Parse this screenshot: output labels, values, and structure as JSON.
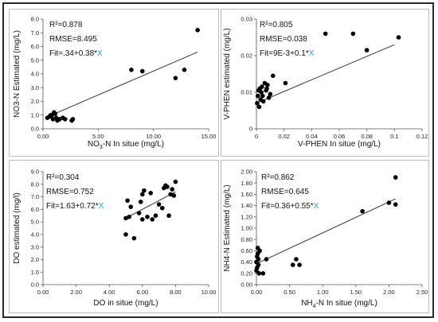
{
  "chart_data": [
    {
      "type": "scatter",
      "xlabel": "NO3-N In situe (mg/L)",
      "xlabel_parts": {
        "a": "NO",
        "sub": "3",
        "b": "-N In situe (mg/L)"
      },
      "ylabel": "NO3-N Estimated (mg/L)",
      "xlim": [
        0,
        15
      ],
      "ylim": [
        0,
        8
      ],
      "xticks": [
        "0.00",
        "5.00",
        "10.00",
        "15.00"
      ],
      "yticks": [
        "0.0",
        "1.0",
        "2.0",
        "3.0",
        "4.0",
        "5.0",
        "6.0",
        "7.0",
        "8.0"
      ],
      "stats": {
        "r2": "R²=0.878",
        "rmse": "RMSE=8.495",
        "fit": "Fit=.34+0.38*",
        "fit_x": "X"
      },
      "fit_line": {
        "x": [
          0.2,
          14.0
        ],
        "y": [
          0.8,
          5.6
        ]
      },
      "x": [
        0.4,
        0.6,
        0.7,
        0.8,
        0.9,
        1.0,
        1.1,
        1.2,
        1.3,
        1.5,
        1.8,
        2.0,
        2.6,
        2.7,
        8.0,
        9.0,
        12.0,
        12.8,
        14.0
      ],
      "y": [
        0.8,
        0.9,
        1.0,
        1.0,
        0.7,
        1.2,
        1.1,
        0.8,
        0.6,
        0.7,
        0.8,
        0.7,
        0.6,
        0.7,
        4.3,
        4.2,
        3.7,
        4.3,
        7.2
      ]
    },
    {
      "type": "scatter",
      "xlabel": "V-PHEN In situe (mg/L)",
      "ylabel": "V-PHEN estimated (mg/L)",
      "xlim": [
        0,
        0.12
      ],
      "ylim": [
        0,
        0.03
      ],
      "xticks": [
        "0",
        "0.02",
        "0.04",
        "0.06",
        "0.08",
        "0.1",
        "0.12"
      ],
      "yticks": [
        "0",
        "0.01",
        "0.02",
        "0.03"
      ],
      "stats": {
        "r2": "R²=0.805",
        "rmse": "RMSE=0.038",
        "fit": "Fit=9E-3+0.1*",
        "fit_x": "X"
      },
      "fit_line": {
        "x": [
          0,
          0.1
        ],
        "y": [
          0.007,
          0.023
        ]
      },
      "x": [
        0.0005,
        0.001,
        0.0015,
        0.002,
        0.0025,
        0.003,
        0.0035,
        0.004,
        0.0045,
        0.005,
        0.006,
        0.007,
        0.0075,
        0.008,
        0.009,
        0.01,
        0.012,
        0.021,
        0.05,
        0.07,
        0.08,
        0.103
      ],
      "y": [
        0.007,
        0.009,
        0.0105,
        0.006,
        0.011,
        0.008,
        0.01,
        0.0115,
        0.009,
        0.0075,
        0.0125,
        0.0105,
        0.011,
        0.012,
        0.0085,
        0.0095,
        0.0145,
        0.0125,
        0.026,
        0.026,
        0.0215,
        0.025
      ]
    },
    {
      "type": "scatter",
      "xlabel": "DO in situe (mg/L)",
      "ylabel": "DO estimated (mg/l)",
      "xlim": [
        0,
        10
      ],
      "ylim": [
        0,
        9
      ],
      "xticks": [
        "0.00",
        "2.00",
        "4.00",
        "6.00",
        "8.00",
        "10.00"
      ],
      "yticks": [
        "0.0",
        "1.0",
        "2.0",
        "3.0",
        "4.0",
        "5.0",
        "6.0",
        "7.0",
        "8.0",
        "9.0"
      ],
      "stats": {
        "r2": "R²=0.304",
        "rmse": "RMSE=0.752",
        "fit": "Fit=1.63+0.72*",
        "fit_x": "X"
      },
      "fit_line": {
        "x": [
          5.0,
          8.0
        ],
        "y": [
          5.3,
          7.4
        ]
      },
      "x": [
        5.0,
        5.0,
        5.1,
        5.2,
        5.3,
        5.5,
        5.8,
        5.9,
        6.0,
        6.0,
        6.1,
        6.3,
        6.5,
        6.6,
        6.8,
        7.0,
        7.2,
        7.3,
        7.4,
        7.5,
        7.6,
        7.7,
        7.8,
        7.9,
        8.0
      ],
      "y": [
        4.0,
        5.3,
        6.7,
        5.4,
        6.2,
        3.7,
        5.7,
        6.6,
        7.2,
        5.2,
        7.5,
        5.4,
        7.3,
        5.2,
        5.5,
        6.4,
        6.1,
        7.7,
        7.9,
        7.8,
        5.5,
        7.2,
        7.6,
        7.1,
        8.2
      ]
    },
    {
      "type": "scatter",
      "xlabel": "NH4-N In situe (mg/L)",
      "xlabel_parts": {
        "a": "NH",
        "sub": "4",
        "b": "-N In situe (mg/L)"
      },
      "ylabel": "NH4-N Estimated (mg/L)",
      "xlim": [
        0,
        2.5
      ],
      "ylim": [
        0,
        2.0
      ],
      "xticks": [
        "0.00",
        "0.50",
        "1.00",
        "1.50",
        "2.00",
        "2.50"
      ],
      "yticks": [
        "0.00",
        "0.20",
        "0.40",
        "0.60",
        "0.80",
        "1.00",
        "1.20",
        "1.40",
        "1.60",
        "1.80",
        "2.00"
      ],
      "stats": {
        "r2": "R²=0.862",
        "rmse": "RMSE=0.645",
        "fit": "Fit=0.36+0.55*",
        "fit_x": "X"
      },
      "fit_line": {
        "x": [
          0,
          2.1
        ],
        "y": [
          0.37,
          1.52
        ]
      },
      "x": [
        0.0,
        0.0,
        0.01,
        0.01,
        0.02,
        0.02,
        0.03,
        0.03,
        0.04,
        0.05,
        0.1,
        0.15,
        0.55,
        0.6,
        0.65,
        1.6,
        2.0,
        2.1,
        2.1
      ],
      "y": [
        0.25,
        0.4,
        0.5,
        0.3,
        0.65,
        0.55,
        0.45,
        0.35,
        0.2,
        0.6,
        0.2,
        0.45,
        0.35,
        0.45,
        0.35,
        1.3,
        1.45,
        1.9,
        1.42
      ]
    }
  ]
}
